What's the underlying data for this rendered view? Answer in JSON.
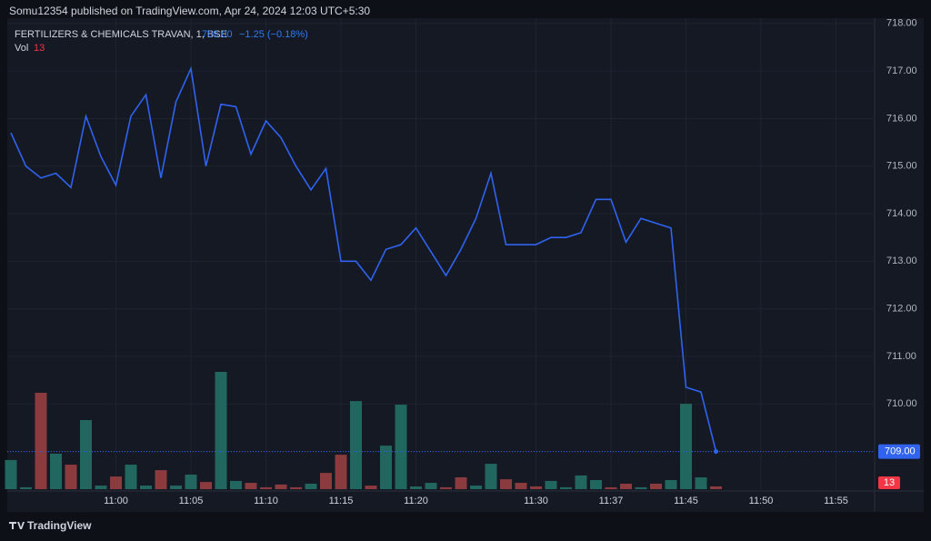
{
  "chart_data": {
    "type": "line",
    "attribution": "Somu12354 published on TradingView.com, Apr 24, 2024 12:03 UTC+5:30",
    "symbol": "FERTILIZERS & CHEMICALS TRAVAN, 1, BSE",
    "last": {
      "value": 709,
      "label": "709.00"
    },
    "change": "−1.25 (−0.18%)",
    "volume_label": "Vol",
    "brand": "TradingView",
    "color": "#2f63f0",
    "grid": true,
    "categories": [
      null,
      null,
      null,
      null,
      null,
      null,
      null,
      "11:00",
      null,
      null,
      null,
      null,
      "11:05",
      null,
      null,
      null,
      null,
      "11:10",
      null,
      null,
      null,
      null,
      "11:15",
      null,
      null,
      null,
      null,
      "11:20",
      null,
      null,
      null,
      null,
      null,
      null,
      null,
      "11:30",
      null,
      null,
      null,
      null,
      "11:37",
      null,
      null,
      null,
      null,
      "11:45",
      null,
      null,
      null,
      null,
      "11:50",
      null,
      null,
      null,
      null,
      "11:55"
    ],
    "values": [
      715.7,
      715.0,
      714.75,
      714.85,
      714.55,
      716.05,
      715.2,
      714.6,
      716.05,
      716.5,
      714.75,
      716.35,
      717.05,
      715.0,
      716.3,
      716.25,
      715.25,
      715.95,
      715.6,
      715.0,
      714.5,
      714.95,
      713.0,
      713.0,
      712.6,
      713.25,
      713.35,
      713.7,
      713.2,
      712.7,
      713.25,
      713.9,
      714.85,
      713.35,
      713.35,
      713.35,
      713.5,
      713.5,
      713.6,
      714.3,
      714.3,
      713.4,
      713.9,
      713.8,
      713.7,
      710.35,
      710.25,
      709,
      null,
      null,
      null,
      null,
      null,
      null,
      null,
      null
    ],
    "volume": {
      "values": [
        138,
        9,
        456,
        168,
        116,
        327,
        17,
        60,
        116,
        17,
        90,
        17,
        69,
        34,
        555,
        39,
        30,
        9,
        22,
        9,
        26,
        77,
        163,
        417,
        17,
        206,
        400,
        13,
        30,
        9,
        56,
        17,
        120,
        47,
        30,
        13,
        39,
        9,
        65,
        43,
        9,
        26,
        9,
        26,
        43,
        404,
        56,
        13,
        null,
        null,
        null,
        null,
        null,
        null,
        null,
        null
      ],
      "colors": [
        "#22675f",
        "#22675f",
        "#8b3a3e",
        "#22675f",
        "#8b3a3e",
        "#22675f",
        "#22675f",
        "#8b3a3e",
        "#22675f",
        "#22675f",
        "#8b3a3e",
        "#22675f",
        "#22675f",
        "#8b3a3e",
        "#22675f",
        "#22675f",
        "#8b3a3e",
        "#8b3a3e",
        "#8b3a3e",
        "#8b3a3e",
        "#22675f",
        "#8b3a3e",
        "#8b3a3e",
        "#22675f",
        "#8b3a3e",
        "#22675f",
        "#22675f",
        "#22675f",
        "#22675f",
        "#8b3a3e",
        "#8b3a3e",
        "#22675f",
        "#22675f",
        "#8b3a3e",
        "#8b3a3e",
        "#8b3a3e",
        "#22675f",
        "#22675f",
        "#22675f",
        "#22675f",
        "#8b3a3e",
        "#8b3a3e",
        "#22675f",
        "#8b3a3e",
        "#22675f",
        "#22675f",
        "#22675f",
        "#8b3a3e",
        null,
        null,
        null,
        null,
        null,
        null,
        null,
        null
      ]
    },
    "ylim": [
      708.17,
      718.11
    ],
    "yticks": [
      {
        "value": 709,
        "label": "709.00"
      },
      {
        "value": 710,
        "label": "710.00"
      },
      {
        "value": 711,
        "label": "711.00"
      },
      {
        "value": 712,
        "label": "712.00"
      },
      {
        "value": 713,
        "label": "713.00"
      },
      {
        "value": 714,
        "label": "714.00"
      },
      {
        "value": 715,
        "label": "715.00"
      },
      {
        "value": 716,
        "label": "716.00"
      },
      {
        "value": 717,
        "label": "717.00"
      },
      {
        "value": 718,
        "label": "718.00"
      }
    ]
  }
}
